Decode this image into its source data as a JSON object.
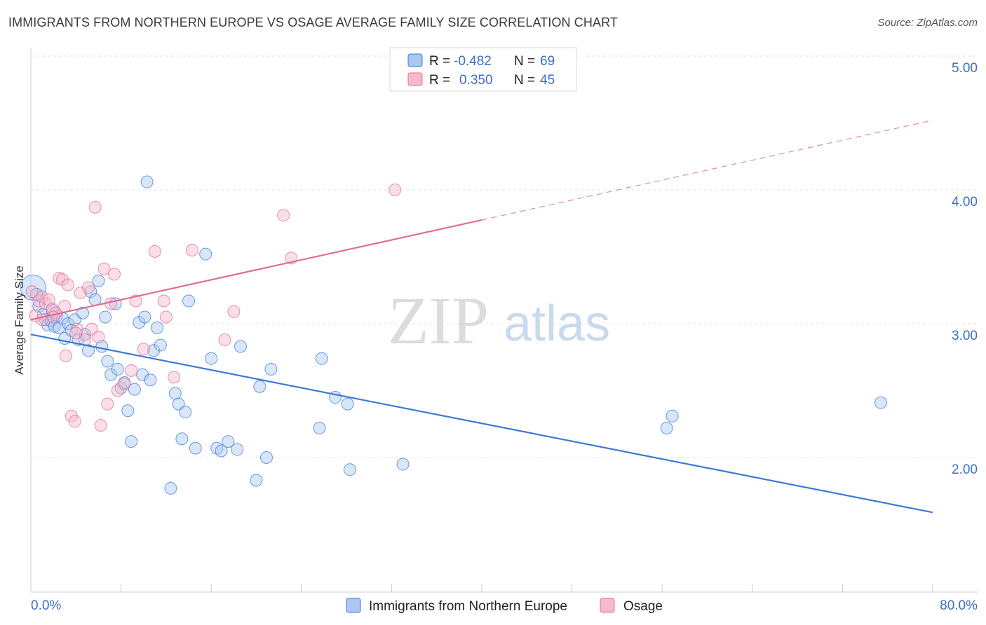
{
  "title": "IMMIGRANTS FROM NORTHERN EUROPE VS OSAGE AVERAGE FAMILY SIZE CORRELATION CHART",
  "source": "Source: ZipAtlas.com",
  "watermark": {
    "zip": "ZIP",
    "atlas": "atlas"
  },
  "legend": {
    "r_label": "R =",
    "n_label": "N =",
    "rows": [
      {
        "r": "-0.482",
        "n": "69",
        "color": "#a9c7ef"
      },
      {
        "r": "0.350",
        "n": "45",
        "color": "#f6b9cc"
      }
    ]
  },
  "chart_data": {
    "type": "scatter",
    "title": "IMMIGRANTS FROM NORTHERN EUROPE VS OSAGE AVERAGE FAMILY SIZE CORRELATION CHART",
    "xlabel": "",
    "ylabel": "Average Family Size",
    "xlim": [
      0,
      80
    ],
    "ylim": [
      1.05,
      5.1
    ],
    "x_tick_labels": [
      "0.0%",
      "80.0%"
    ],
    "y_ticks": [
      2.0,
      3.0,
      4.0,
      5.0
    ],
    "y_tick_labels": [
      "2.00",
      "3.00",
      "4.00",
      "5.00"
    ],
    "grid": true,
    "legend_position": "top-center",
    "series": [
      {
        "name": "Immigrants from Northern Europe",
        "color": "#3b7bd6",
        "fill": "#a9c7ef",
        "trend": {
          "x": [
            0,
            80
          ],
          "y": [
            2.92,
            1.59
          ],
          "dashed_from": null
        },
        "points": [
          [
            0.2,
            3.27
          ],
          [
            0.5,
            3.22
          ],
          [
            0.7,
            3.13
          ],
          [
            1.1,
            3.07
          ],
          [
            1.3,
            3.03
          ],
          [
            1.5,
            2.99
          ],
          [
            1.8,
            3.02
          ],
          [
            2.1,
            2.98
          ],
          [
            2.3,
            3.06
          ],
          [
            2.5,
            2.97
          ],
          [
            2.8,
            3.04
          ],
          [
            3.0,
            2.89
          ],
          [
            3.3,
            3.0
          ],
          [
            3.6,
            2.95
          ],
          [
            3.9,
            3.03
          ],
          [
            4.2,
            2.88
          ],
          [
            4.6,
            3.08
          ],
          [
            4.8,
            2.92
          ],
          [
            5.1,
            2.8
          ],
          [
            5.3,
            3.24
          ],
          [
            5.7,
            3.18
          ],
          [
            6.0,
            3.32
          ],
          [
            6.3,
            2.83
          ],
          [
            6.6,
            3.05
          ],
          [
            6.8,
            2.72
          ],
          [
            7.1,
            2.62
          ],
          [
            7.5,
            3.15
          ],
          [
            7.7,
            2.66
          ],
          [
            8.0,
            2.52
          ],
          [
            8.3,
            2.56
          ],
          [
            8.6,
            2.35
          ],
          [
            8.9,
            2.12
          ],
          [
            9.2,
            2.51
          ],
          [
            9.6,
            3.01
          ],
          [
            9.9,
            2.62
          ],
          [
            10.1,
            3.05
          ],
          [
            10.3,
            4.06
          ],
          [
            10.6,
            2.58
          ],
          [
            10.9,
            2.8
          ],
          [
            11.2,
            2.97
          ],
          [
            11.5,
            2.84
          ],
          [
            12.8,
            2.48
          ],
          [
            13.1,
            2.4
          ],
          [
            13.4,
            2.14
          ],
          [
            13.7,
            2.34
          ],
          [
            14.0,
            3.17
          ],
          [
            14.6,
            2.07
          ],
          [
            15.5,
            3.52
          ],
          [
            16.0,
            2.74
          ],
          [
            16.5,
            2.07
          ],
          [
            16.9,
            2.05
          ],
          [
            17.5,
            2.12
          ],
          [
            18.3,
            2.06
          ],
          [
            18.6,
            2.83
          ],
          [
            20.0,
            1.83
          ],
          [
            20.3,
            2.53
          ],
          [
            20.9,
            2.0
          ],
          [
            21.3,
            2.66
          ],
          [
            25.6,
            2.22
          ],
          [
            25.8,
            2.74
          ],
          [
            27.0,
            2.45
          ],
          [
            28.1,
            2.4
          ],
          [
            28.3,
            1.91
          ],
          [
            33.0,
            1.95
          ],
          [
            56.4,
            2.22
          ],
          [
            56.9,
            2.31
          ],
          [
            75.4,
            2.41
          ],
          [
            12.4,
            1.77
          ],
          [
            1.9,
            3.1
          ]
        ]
      },
      {
        "name": "Osage",
        "color": "#e26b94",
        "fill": "#f6b9cc",
        "trend": {
          "x": [
            0,
            80
          ],
          "y": [
            3.03,
            4.52
          ],
          "dashed_from": 40
        },
        "points": [
          [
            0.1,
            3.24
          ],
          [
            0.4,
            3.06
          ],
          [
            0.7,
            3.17
          ],
          [
            1.0,
            3.2
          ],
          [
            1.3,
            3.15
          ],
          [
            1.6,
            3.18
          ],
          [
            1.9,
            3.11
          ],
          [
            2.2,
            3.08
          ],
          [
            2.5,
            3.34
          ],
          [
            2.8,
            3.33
          ],
          [
            3.1,
            2.76
          ],
          [
            3.3,
            3.29
          ],
          [
            3.6,
            2.31
          ],
          [
            3.9,
            2.27
          ],
          [
            4.1,
            2.96
          ],
          [
            4.4,
            3.23
          ],
          [
            4.8,
            2.88
          ],
          [
            5.1,
            3.27
          ],
          [
            5.4,
            2.96
          ],
          [
            5.7,
            3.87
          ],
          [
            6.0,
            2.9
          ],
          [
            6.2,
            2.24
          ],
          [
            6.5,
            3.41
          ],
          [
            6.8,
            2.4
          ],
          [
            7.1,
            3.15
          ],
          [
            7.4,
            3.37
          ],
          [
            7.7,
            2.5
          ],
          [
            8.9,
            2.65
          ],
          [
            9.3,
            3.17
          ],
          [
            10.0,
            2.81
          ],
          [
            11.0,
            3.54
          ],
          [
            11.8,
            3.17
          ],
          [
            12.0,
            3.05
          ],
          [
            12.7,
            2.6
          ],
          [
            14.3,
            3.55
          ],
          [
            17.2,
            2.88
          ],
          [
            18.0,
            3.09
          ],
          [
            22.4,
            3.81
          ],
          [
            23.1,
            3.49
          ],
          [
            32.3,
            4.0
          ],
          [
            1.0,
            3.03
          ],
          [
            2.0,
            3.05
          ],
          [
            3.0,
            3.13
          ],
          [
            4.0,
            2.93
          ],
          [
            8.3,
            2.55
          ]
        ]
      }
    ]
  },
  "bottom_legend": [
    {
      "label": "Immigrants from Northern Europe",
      "color": "#a9c7ef",
      "stroke": "#3b7bd6"
    },
    {
      "label": "Osage",
      "color": "#f6b9cc",
      "stroke": "#e26b94"
    }
  ]
}
